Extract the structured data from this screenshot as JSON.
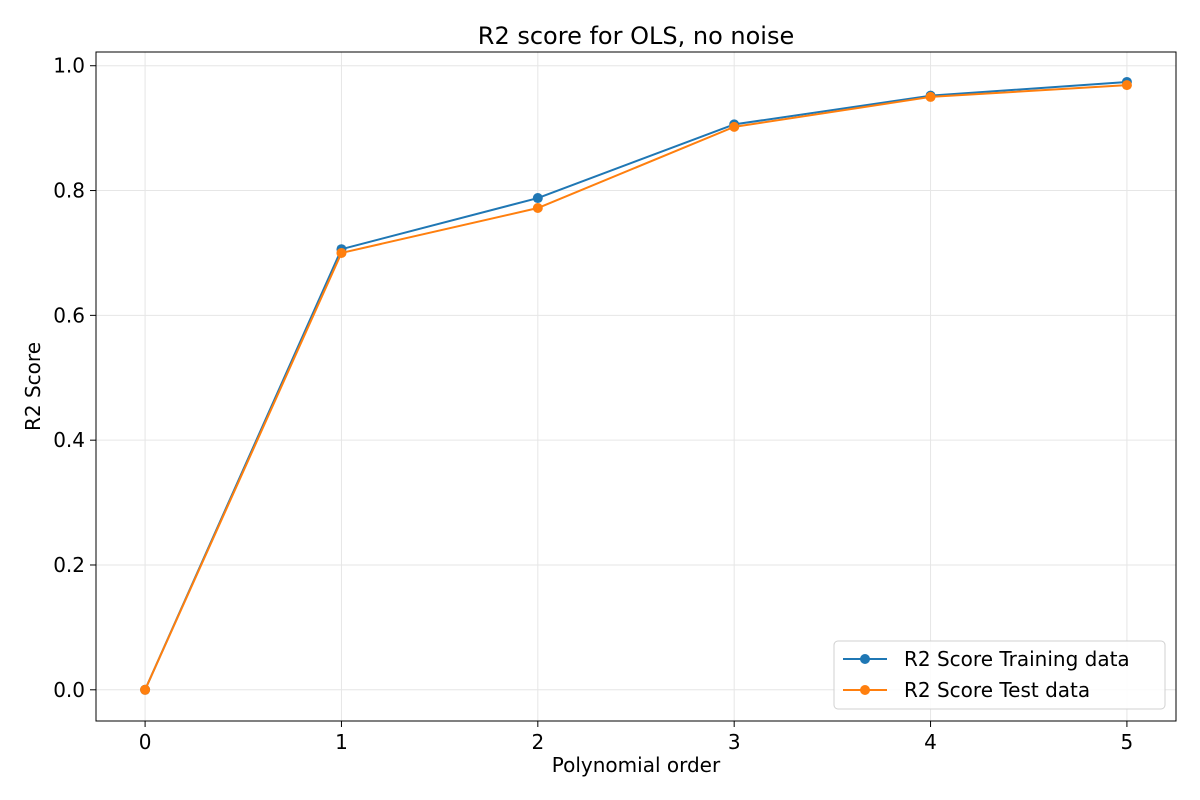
{
  "chart_data": {
    "type": "line",
    "title": "R2 score for OLS, no noise",
    "xlabel": "Polynomial order",
    "ylabel": "R2 Score",
    "x": [
      0,
      1,
      2,
      3,
      4,
      5
    ],
    "xlim": [
      -0.25,
      5.25
    ],
    "ylim": [
      -0.05,
      1.022
    ],
    "xticks": [
      0,
      1,
      2,
      3,
      4,
      5
    ],
    "yticks": [
      0.0,
      0.2,
      0.4,
      0.6,
      0.8,
      1.0
    ],
    "xtick_labels": [
      "0",
      "1",
      "2",
      "3",
      "4",
      "5"
    ],
    "ytick_labels": [
      "0.0",
      "0.2",
      "0.4",
      "0.6",
      "0.8",
      "1.0"
    ],
    "grid": true,
    "legend_position": "bottom-right",
    "series": [
      {
        "name": "R2 Score Training data",
        "color": "#1f77b4",
        "marker": "circle",
        "values": [
          0.0,
          0.706,
          0.788,
          0.906,
          0.952,
          0.974
        ]
      },
      {
        "name": "R2 Score Test data",
        "color": "#ff7f0e",
        "marker": "circle",
        "values": [
          0.0,
          0.7,
          0.772,
          0.902,
          0.95,
          0.969
        ]
      }
    ]
  }
}
